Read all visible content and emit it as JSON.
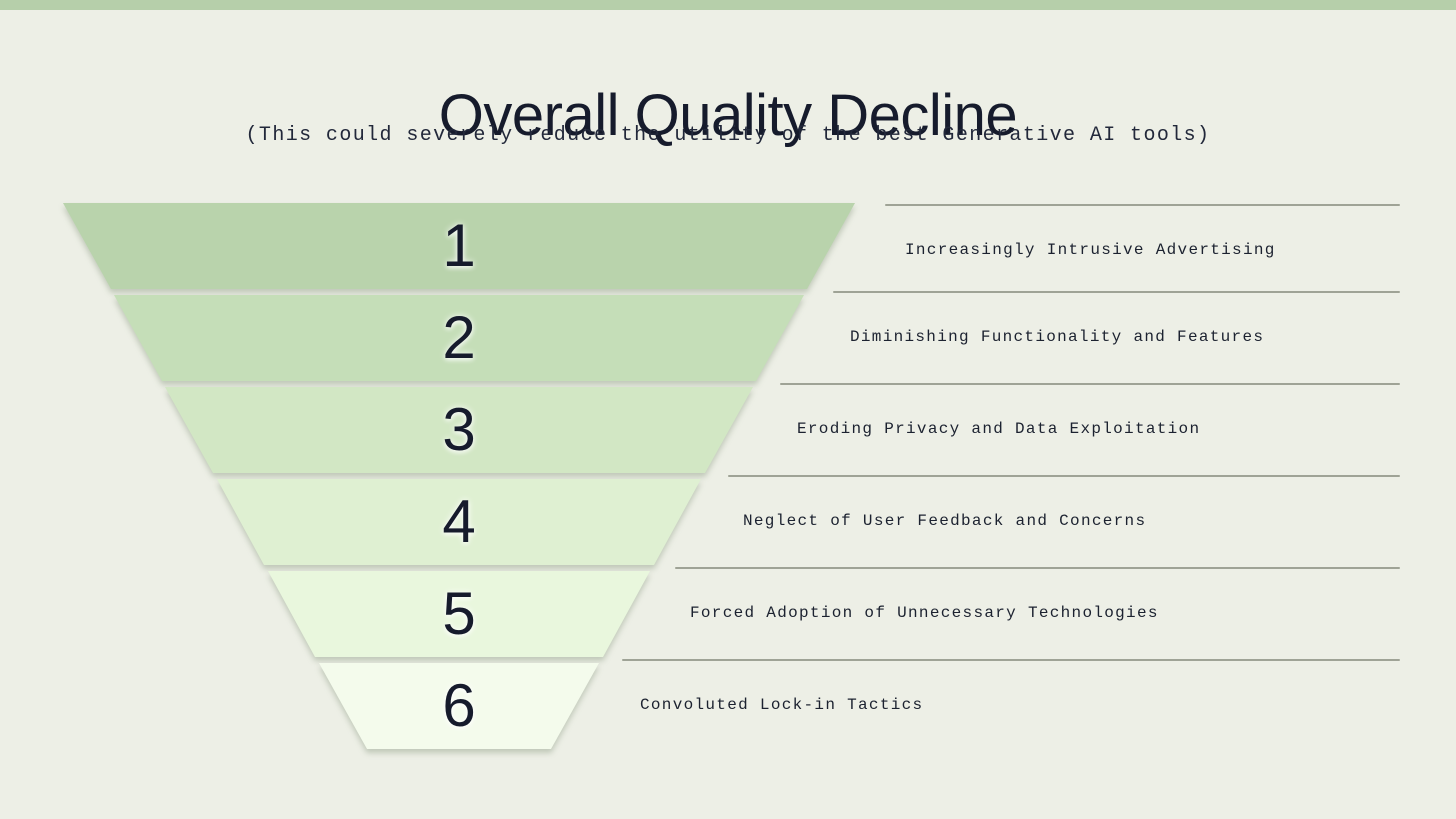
{
  "page": {
    "title": "Overall Quality Decline",
    "subtitle": "(This could severely reduce the utility of the best Generative AI tools)"
  },
  "colors": {
    "top_bar": "#b6cfaa",
    "background": "#edefe6",
    "heading_text": "#161b2c",
    "label_text": "#1c2230",
    "divider_line": "#9fa396",
    "funnel_segments": [
      "#b9d3ac",
      "#c5deb8",
      "#d2e7c4",
      "#dff0d2",
      "#e9f7dd",
      "#f4fbec"
    ]
  },
  "funnel": {
    "type": "funnel",
    "steps": [
      {
        "number": "1",
        "label": "Increasingly Intrusive Advertising",
        "color": "#b9d3ac"
      },
      {
        "number": "2",
        "label": "Diminishing Functionality and Features",
        "color": "#c5deb8"
      },
      {
        "number": "3",
        "label": "Eroding Privacy and Data Exploitation",
        "color": "#d2e7c4"
      },
      {
        "number": "4",
        "label": "Neglect of User Feedback and Concerns",
        "color": "#dff0d2"
      },
      {
        "number": "5",
        "label": "Forced Adoption of Unnecessary Technologies",
        "color": "#e9f7dd"
      },
      {
        "number": "6",
        "label": "Convoluted Lock-in Tactics",
        "color": "#f4fbec"
      }
    ]
  }
}
